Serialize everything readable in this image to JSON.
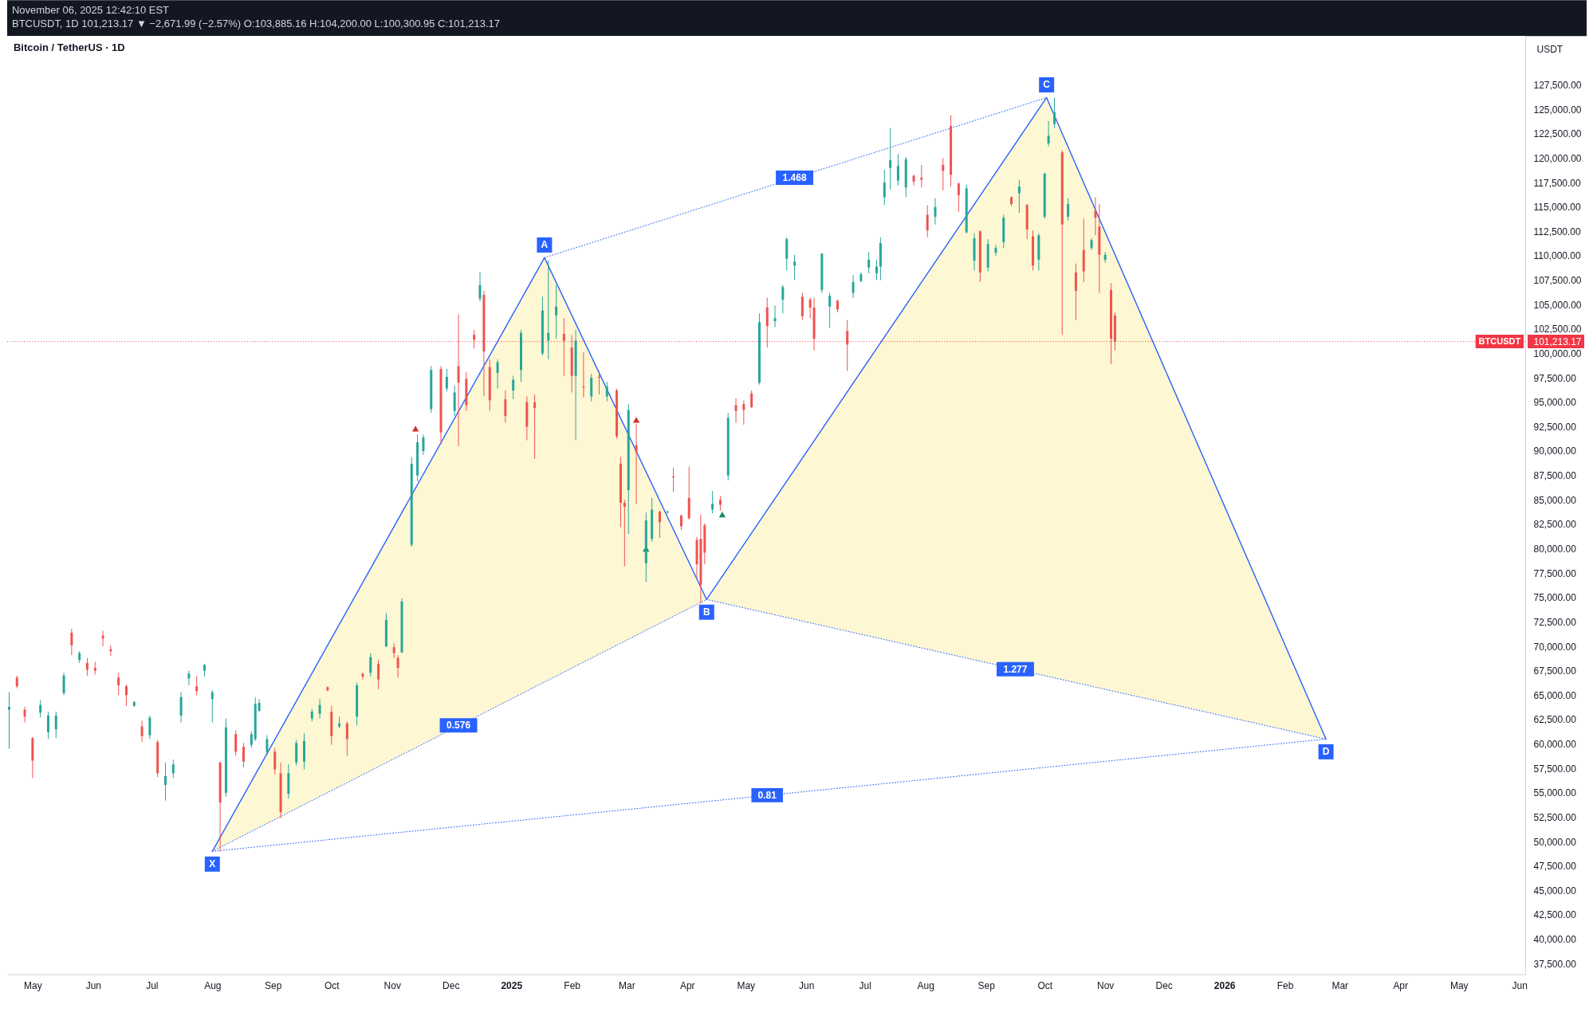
{
  "chart_data": {
    "type": "candlestick",
    "title": "Bitcoin / TetherUS · 1D",
    "ylabel": "USDT",
    "xlim": [
      "2024-04-18",
      "2026-06-04"
    ],
    "ylim": [
      36400,
      132500
    ],
    "xticks": [
      {
        "value": "2024-05-01",
        "label": "May"
      },
      {
        "value": "2024-06-01",
        "label": "Jun"
      },
      {
        "value": "2024-07-01",
        "label": "Jul"
      },
      {
        "value": "2024-08-01",
        "label": "Aug"
      },
      {
        "value": "2024-09-01",
        "label": "Sep"
      },
      {
        "value": "2024-10-01",
        "label": "Oct"
      },
      {
        "value": "2024-11-01",
        "label": "Nov"
      },
      {
        "value": "2024-12-01",
        "label": "Dec"
      },
      {
        "value": "2025-01-01",
        "label": "2025"
      },
      {
        "value": "2025-02-01",
        "label": "Feb"
      },
      {
        "value": "2025-03-01",
        "label": "Mar"
      },
      {
        "value": "2025-04-01",
        "label": "Apr"
      },
      {
        "value": "2025-05-01",
        "label": "May"
      },
      {
        "value": "2025-06-01",
        "label": "Jun"
      },
      {
        "value": "2025-07-01",
        "label": "Jul"
      },
      {
        "value": "2025-08-01",
        "label": "Aug"
      },
      {
        "value": "2025-09-01",
        "label": "Sep"
      },
      {
        "value": "2025-10-01",
        "label": "Oct"
      },
      {
        "value": "2025-11-01",
        "label": "Nov"
      },
      {
        "value": "2025-12-01",
        "label": "Dec"
      },
      {
        "value": "2026-01-01",
        "label": "2026"
      },
      {
        "value": "2026-02-01",
        "label": "Feb"
      },
      {
        "value": "2026-03-01",
        "label": "Mar"
      },
      {
        "value": "2026-04-01",
        "label": "Apr"
      },
      {
        "value": "2026-05-01",
        "label": "May"
      },
      {
        "value": "2026-06-01",
        "label": "Jun"
      }
    ],
    "yticks": [
      {
        "value": 37500,
        "label": "37,500.00"
      },
      {
        "value": 40000,
        "label": "40,000.00"
      },
      {
        "value": 42500,
        "label": "42,500.00"
      },
      {
        "value": 45000,
        "label": "45,000.00"
      },
      {
        "value": 47500,
        "label": "47,500.00"
      },
      {
        "value": 50000,
        "label": "50,000.00"
      },
      {
        "value": 52500,
        "label": "52,500.00"
      },
      {
        "value": 55000,
        "label": "55,000.00"
      },
      {
        "value": 57500,
        "label": "57,500.00"
      },
      {
        "value": 60000,
        "label": "60,000.00"
      },
      {
        "value": 62500,
        "label": "62,500.00"
      },
      {
        "value": 65000,
        "label": "65,000.00"
      },
      {
        "value": 67500,
        "label": "67,500.00"
      },
      {
        "value": 70000,
        "label": "70,000.00"
      },
      {
        "value": 72500,
        "label": "72,500.00"
      },
      {
        "value": 75000,
        "label": "75,000.00"
      },
      {
        "value": 77500,
        "label": "77,500.00"
      },
      {
        "value": 80000,
        "label": "80,000.00"
      },
      {
        "value": 82500,
        "label": "82,500.00"
      },
      {
        "value": 85000,
        "label": "85,000.00"
      },
      {
        "value": 87500,
        "label": "87,500.00"
      },
      {
        "value": 90000,
        "label": "90,000.00"
      },
      {
        "value": 92500,
        "label": "92,500.00"
      },
      {
        "value": 95000,
        "label": "95,000.00"
      },
      {
        "value": 97500,
        "label": "97,500.00"
      },
      {
        "value": 100000,
        "label": "100,000.00"
      },
      {
        "value": 101213.17,
        "label": "101,213.17"
      },
      {
        "value": 102500,
        "label": "102,500.00"
      },
      {
        "value": 105000,
        "label": "105,000.00"
      },
      {
        "value": 107500,
        "label": "107,500.00"
      },
      {
        "value": 110000,
        "label": "110,000.00"
      },
      {
        "value": 112500,
        "label": "112,500.00"
      },
      {
        "value": 115000,
        "label": "115,000.00"
      },
      {
        "value": 117500,
        "label": "117,500.00"
      },
      {
        "value": 120000,
        "label": "120,000.00"
      },
      {
        "value": 122500,
        "label": "122,500.00"
      },
      {
        "value": 125000,
        "label": "125,000.00"
      },
      {
        "value": 127500,
        "label": "127,500.00"
      }
    ],
    "series": [
      {
        "type": "line",
        "x": [
          "2024-08-01",
          "2025-01-18",
          "2025-04-11"
        ],
        "values": [
          49000,
          66340,
          74800
        ],
        "lower": [
          49000,
          66340,
          74800
        ],
        "upper": [
          49000,
          109800,
          74800
        ],
        "color": "#2962ff",
        "line_style": "dotted"
      },
      {
        "type": "line",
        "x": [
          "2025-01-18",
          "2025-10-02"
        ],
        "values": [
          109800,
          126200
        ],
        "color": "#2962ff",
        "line_style": "dotted"
      },
      {
        "type": "line",
        "x": [
          "2025-04-11",
          "2025-10-02",
          "2026-02-22"
        ],
        "values": [
          74800,
          66950,
          60500
        ],
        "lower": [
          74800,
          66950,
          60500
        ],
        "upper": [
          74800,
          126200,
          60500
        ],
        "color": "#2962ff",
        "line_style": "dotted"
      },
      {
        "type": "line",
        "x": [
          "2024-08-01",
          "2026-02-22"
        ],
        "values": [
          49000,
          60500
        ],
        "color": "#2962ff",
        "line_style": "dotted"
      },
      {
        "type": "line",
        "x": [
          "2024-08-01",
          "2025-01-18",
          "2025-04-11",
          "2025-10-02",
          "2026-02-22"
        ],
        "values": [
          49000,
          109800,
          74800,
          126200,
          60500
        ],
        "color": "#2962ff",
        "line_style": "solid"
      },
      {
        "type": "scatter",
        "x": [
          "2024-11-13",
          "2025-03-06"
        ],
        "values": [
          92300,
          93200
        ],
        "color": "#d32f2f",
        "marker": "triangle"
      },
      {
        "type": "scatter",
        "x": [
          "2025-03-11",
          "2025-04-19"
        ],
        "values": [
          80000,
          83500
        ],
        "color": "#178a6c",
        "marker": "triangle"
      },
      {
        "x": [
          "2024-04-19",
          "2024-04-23",
          "2024-04-27",
          "2024-05-01",
          "2024-05-05",
          "2024-05-09",
          "2024-05-13",
          "2024-05-17",
          "2024-05-21",
          "2024-05-25",
          "2024-05-29",
          "2024-06-02",
          "2024-06-06",
          "2024-06-10",
          "2024-06-14",
          "2024-06-18",
          "2024-06-22",
          "2024-06-26",
          "2024-06-30",
          "2024-07-04",
          "2024-07-08",
          "2024-07-12",
          "2024-07-16",
          "2024-07-20",
          "2024-07-24",
          "2024-07-28",
          "2024-08-01",
          "2024-08-05",
          "2024-08-08",
          "2024-08-13",
          "2024-08-17",
          "2024-08-21",
          "2024-08-23",
          "2024-08-25",
          "2024-08-29",
          "2024-09-02",
          "2024-09-05",
          "2024-09-09",
          "2024-09-13",
          "2024-09-17",
          "2024-09-21",
          "2024-09-25",
          "2024-09-29",
          "2024-10-01",
          "2024-10-05",
          "2024-10-09",
          "2024-10-14",
          "2024-10-17",
          "2024-10-21",
          "2024-10-25",
          "2024-10-29",
          "2024-11-02",
          "2024-11-04",
          "2024-11-06",
          "2024-11-11",
          "2024-11-14",
          "2024-11-17",
          "2024-11-21",
          "2024-11-26",
          "2024-11-29",
          "2024-12-03",
          "2024-12-05",
          "2024-12-09",
          "2024-12-13",
          "2024-12-16",
          "2024-12-18",
          "2024-12-21",
          "2024-12-25",
          "2024-12-29",
          "2025-01-02",
          "2025-01-06",
          "2025-01-09",
          "2025-01-13",
          "2025-01-17",
          "2025-01-20",
          "2025-01-24",
          "2025-01-28",
          "2025-02-01",
          "2025-02-03",
          "2025-02-07",
          "2025-02-11",
          "2025-02-15",
          "2025-02-19",
          "2025-02-24",
          "2025-02-26",
          "2025-02-28",
          "2025-03-02",
          "2025-03-06",
          "2025-03-11",
          "2025-03-14",
          "2025-03-18",
          "2025-03-22",
          "2025-03-25",
          "2025-03-29",
          "2025-04-02",
          "2025-04-06",
          "2025-04-08",
          "2025-04-10",
          "2025-04-14",
          "2025-04-18",
          "2025-04-22",
          "2025-04-26",
          "2025-04-30",
          "2025-05-04",
          "2025-05-08",
          "2025-05-12",
          "2025-05-16",
          "2025-05-20",
          "2025-05-22",
          "2025-05-26",
          "2025-05-30",
          "2025-06-03",
          "2025-06-05",
          "2025-06-09",
          "2025-06-13",
          "2025-06-17",
          "2025-06-22",
          "2025-06-25",
          "2025-06-29",
          "2025-07-03",
          "2025-07-07",
          "2025-07-09",
          "2025-07-11",
          "2025-07-14",
          "2025-07-18",
          "2025-07-22",
          "2025-07-26",
          "2025-07-30",
          "2025-08-02",
          "2025-08-06",
          "2025-08-10",
          "2025-08-14",
          "2025-08-18",
          "2025-08-22",
          "2025-08-26",
          "2025-08-29",
          "2025-09-02",
          "2025-09-06",
          "2025-09-10",
          "2025-09-14",
          "2025-09-18",
          "2025-09-22",
          "2025-09-25",
          "2025-09-28",
          "2025-10-01",
          "2025-10-03",
          "2025-10-06",
          "2025-10-10",
          "2025-10-13",
          "2025-10-17",
          "2025-10-21",
          "2025-10-25",
          "2025-10-27",
          "2025-10-29",
          "2025-11-01",
          "2025-11-04",
          "2025-11-06"
        ],
        "ohlc": [
          [
            63500,
            65300,
            59500,
            63800
          ],
          [
            66800,
            67000,
            65700,
            65900
          ],
          [
            63500,
            63800,
            62200,
            62800
          ],
          [
            60600,
            60700,
            56500,
            58300
          ],
          [
            63200,
            64500,
            62700,
            64000
          ],
          [
            61200,
            63300,
            60500,
            62900
          ],
          [
            61500,
            63300,
            60600,
            62900
          ],
          [
            65200,
            67300,
            65000,
            67000
          ],
          [
            71400,
            71800,
            69100,
            70100
          ],
          [
            68600,
            69500,
            68300,
            69300
          ],
          [
            68300,
            68800,
            67000,
            67600
          ],
          [
            67800,
            68400,
            67100,
            67500
          ],
          [
            71100,
            71600,
            70000,
            70800
          ],
          [
            69700,
            70100,
            69000,
            69500
          ],
          [
            66800,
            67300,
            65000,
            66000
          ],
          [
            65900,
            66100,
            63900,
            65000
          ],
          [
            63900,
            64400,
            63800,
            64300
          ],
          [
            61800,
            62400,
            60200,
            60800
          ],
          [
            60900,
            62900,
            60500,
            62700
          ],
          [
            60200,
            60400,
            56600,
            57000
          ],
          [
            55800,
            58100,
            54200,
            56700
          ],
          [
            57000,
            58400,
            56500,
            57900
          ],
          [
            62900,
            65300,
            62200,
            64800
          ],
          [
            66700,
            67500,
            66000,
            67200
          ],
          [
            65900,
            67000,
            65000,
            65400
          ],
          [
            67500,
            68200,
            66900,
            68100
          ],
          [
            64600,
            65500,
            62200,
            65300
          ],
          [
            58100,
            58200,
            49000,
            54000
          ],
          [
            55000,
            62600,
            54600,
            61700
          ],
          [
            61000,
            61400,
            58800,
            59200
          ],
          [
            59700,
            60100,
            57600,
            58200
          ],
          [
            59900,
            61300,
            59600,
            61000
          ],
          [
            60500,
            64800,
            60300,
            64100
          ],
          [
            63400,
            64600,
            63300,
            64200
          ],
          [
            59200,
            60900,
            58900,
            60500
          ],
          [
            59200,
            59600,
            56900,
            57400
          ],
          [
            57000,
            58100,
            52400,
            53000
          ],
          [
            54900,
            57900,
            54400,
            57000
          ],
          [
            58100,
            60400,
            57800,
            60100
          ],
          [
            58200,
            61100,
            57400,
            60300
          ],
          [
            62600,
            63600,
            62300,
            63300
          ],
          [
            63100,
            64600,
            62600,
            64000
          ],
          [
            65800,
            65900,
            65400,
            65500
          ],
          [
            63300,
            63900,
            59900,
            60800
          ],
          [
            61800,
            62800,
            61600,
            62100
          ],
          [
            62100,
            62300,
            58800,
            60500
          ],
          [
            62800,
            66300,
            61900,
            66000
          ],
          [
            67200,
            67300,
            66600,
            66900
          ],
          [
            67300,
            69300,
            66900,
            68900
          ],
          [
            68200,
            68600,
            65600,
            66600
          ],
          [
            70000,
            73400,
            69900,
            72700
          ],
          [
            69900,
            70300,
            68800,
            69300
          ],
          [
            68800,
            69100,
            66800,
            67800
          ],
          [
            69400,
            74900,
            69300,
            74600
          ],
          [
            80400,
            89400,
            80200,
            88700
          ],
          [
            87500,
            91700,
            86900,
            90900
          ],
          [
            90000,
            91700,
            89600,
            91400
          ],
          [
            94300,
            98700,
            93900,
            98300
          ],
          [
            98400,
            98700,
            90700,
            91900
          ],
          [
            96400,
            98400,
            96100,
            97600
          ],
          [
            94100,
            96700,
            93600,
            96000
          ],
          [
            98700,
            104000,
            90500,
            97000
          ],
          [
            97400,
            98100,
            94100,
            94700
          ],
          [
            101900,
            102400,
            100500,
            101400
          ],
          [
            105600,
            108300,
            105300,
            107000
          ],
          [
            106000,
            106400,
            95600,
            100200
          ],
          [
            98600,
            99400,
            94100,
            95200
          ],
          [
            98000,
            99400,
            96400,
            99100
          ],
          [
            95300,
            96200,
            92900,
            93600
          ],
          [
            96200,
            97700,
            95300,
            97300
          ],
          [
            98300,
            102400,
            97100,
            102100
          ],
          [
            95000,
            95600,
            91100,
            92500
          ],
          [
            95000,
            95800,
            89200,
            94400
          ],
          [
            100000,
            105800,
            99800,
            104400
          ],
          [
            101300,
            109500,
            99400,
            102100
          ],
          [
            103900,
            107000,
            101500,
            104800
          ],
          [
            102000,
            103600,
            97700,
            101300
          ],
          [
            100600,
            101900,
            96000,
            97700
          ],
          [
            97700,
            102400,
            91100,
            101300
          ],
          [
            96600,
            100100,
            95500,
            96500
          ],
          [
            95600,
            97900,
            95100,
            97500
          ],
          [
            97600,
            98200,
            95800,
            97500
          ],
          [
            95600,
            97100,
            95100,
            96600
          ],
          [
            96200,
            96400,
            91300,
            91500
          ],
          [
            88700,
            89400,
            82200,
            84700
          ],
          [
            84700,
            85000,
            78200,
            84300
          ],
          [
            86000,
            94800,
            81500,
            94200
          ],
          [
            90600,
            92800,
            84600,
            89900
          ],
          [
            78500,
            83700,
            76600,
            82900
          ],
          [
            81000,
            85200,
            80700,
            84000
          ],
          [
            83800,
            83900,
            81100,
            82700
          ],
          [
            83700,
            83900,
            83600,
            83800
          ],
          [
            87400,
            88300,
            85800,
            87300
          ],
          [
            83400,
            83500,
            81900,
            82300
          ],
          [
            85200,
            88400,
            83000,
            83100
          ],
          [
            80900,
            81200,
            77000,
            78400
          ],
          [
            81000,
            83500,
            74400,
            76300
          ],
          [
            82400,
            82600,
            78400,
            79600
          ],
          [
            84000,
            85900,
            83600,
            84600
          ],
          [
            85000,
            85400,
            83900,
            84500
          ],
          [
            87500,
            93900,
            87000,
            93400
          ],
          [
            94700,
            95400,
            92900,
            94100
          ],
          [
            94800,
            95200,
            92700,
            94200
          ],
          [
            95900,
            96200,
            94400,
            94500
          ],
          [
            97000,
            104100,
            96800,
            103200
          ],
          [
            104700,
            105700,
            100600,
            102800
          ],
          [
            103300,
            104900,
            102700,
            103600
          ],
          [
            105500,
            107000,
            104100,
            106800
          ],
          [
            109700,
            111900,
            108500,
            111700
          ],
          [
            109000,
            110100,
            107500,
            109400
          ],
          [
            105800,
            106200,
            103400,
            103800
          ],
          [
            105500,
            105700,
            103600,
            104700
          ],
          [
            104700,
            105700,
            100300,
            101500
          ],
          [
            106500,
            110300,
            106200,
            110200
          ],
          [
            104800,
            106200,
            102600,
            105900
          ],
          [
            105400,
            105500,
            104200,
            104500
          ],
          [
            102300,
            103400,
            98200,
            100900
          ],
          [
            106200,
            108000,
            105700,
            107300
          ],
          [
            107400,
            108300,
            107300,
            108100
          ],
          [
            108800,
            110400,
            108200,
            109600
          ],
          [
            108200,
            109600,
            107500,
            108900
          ],
          [
            108900,
            111900,
            107500,
            111300
          ],
          [
            116000,
            118800,
            115200,
            117500
          ],
          [
            119000,
            123100,
            116800,
            119800
          ],
          [
            117700,
            120400,
            117200,
            119200
          ],
          [
            117000,
            120100,
            116000,
            119900
          ],
          [
            118200,
            118300,
            117200,
            117600
          ],
          [
            118000,
            119300,
            117000,
            117800
          ],
          [
            114200,
            115200,
            111900,
            112600
          ],
          [
            114000,
            115900,
            113200,
            115000
          ],
          [
            119300,
            120000,
            116700,
            118700
          ],
          [
            123300,
            124400,
            117100,
            118300
          ],
          [
            117400,
            117500,
            114500,
            116200
          ],
          [
            112400,
            117300,
            112300,
            116900
          ],
          [
            109500,
            112300,
            108500,
            111800
          ],
          [
            112500,
            112600,
            107300,
            108300
          ],
          [
            108800,
            111700,
            108400,
            111200
          ],
          [
            110300,
            111100,
            110000,
            110800
          ],
          [
            111400,
            114200,
            110800,
            113900
          ],
          [
            116000,
            116100,
            115100,
            115300
          ],
          [
            116400,
            117800,
            114400,
            117100
          ],
          [
            115200,
            115300,
            111700,
            112700
          ],
          [
            112000,
            112600,
            108500,
            109000
          ],
          [
            109600,
            112300,
            108500,
            112100
          ],
          [
            114000,
            118500,
            113800,
            118400
          ],
          [
            121500,
            123800,
            121200,
            122300
          ],
          [
            123500,
            126200,
            123100,
            124700
          ],
          [
            120600,
            120800,
            101900,
            113200
          ],
          [
            114000,
            115900,
            113600,
            115300
          ],
          [
            108300,
            109200,
            103400,
            106400
          ],
          [
            110600,
            113800,
            107300,
            108400
          ],
          [
            110800,
            111800,
            110600,
            111600
          ],
          [
            114600,
            116000,
            112100,
            113900
          ],
          [
            113000,
            115300,
            106200,
            110100
          ],
          [
            109600,
            110400,
            109300,
            110100
          ],
          [
            106500,
            107200,
            98900,
            101500
          ],
          [
            103885.16,
            104200,
            100300.95,
            101213.17
          ]
        ],
        "colors": [
          "#26a69a",
          "#ef5350",
          "#ef5350",
          "#ef5350",
          "#26a69a",
          "#26a69a",
          "#26a69a",
          "#26a69a",
          "#ef5350",
          "#26a69a",
          "#ef5350",
          "#ef5350",
          "#ef5350",
          "#ef5350",
          "#ef5350",
          "#ef5350",
          "#26a69a",
          "#ef5350",
          "#26a69a",
          "#ef5350",
          "#26a69a",
          "#26a69a",
          "#26a69a",
          "#26a69a",
          "#ef5350",
          "#26a69a",
          "#26a69a",
          "#ef5350",
          "#26a69a",
          "#ef5350",
          "#ef5350",
          "#26a69a",
          "#26a69a",
          "#26a69a",
          "#26a69a",
          "#ef5350",
          "#ef5350",
          "#26a69a",
          "#26a69a",
          "#26a69a",
          "#26a69a",
          "#26a69a",
          "#ef5350",
          "#ef5350",
          "#26a69a",
          "#ef5350",
          "#26a69a",
          "#ef5350",
          "#26a69a",
          "#ef5350",
          "#26a69a",
          "#ef5350",
          "#ef5350",
          "#26a69a",
          "#26a69a",
          "#26a69a",
          "#26a69a",
          "#26a69a",
          "#ef5350",
          "#26a69a",
          "#26a69a",
          "#ef5350",
          "#ef5350",
          "#ef5350",
          "#26a69a",
          "#ef5350",
          "#ef5350",
          "#26a69a",
          "#ef5350",
          "#26a69a",
          "#26a69a",
          "#ef5350",
          "#ef5350",
          "#26a69a",
          "#26a69a",
          "#26a69a",
          "#ef5350",
          "#ef5350",
          "#26a69a",
          "#ef5350",
          "#26a69a",
          "#ef5350",
          "#26a69a",
          "#ef5350",
          "#ef5350",
          "#ef5350",
          "#26a69a",
          "#ef5350",
          "#26a69a",
          "#26a69a",
          "#ef5350",
          "#26a69a",
          "#ef5350",
          "#ef5350",
          "#ef5350",
          "#ef5350",
          "#ef5350",
          "#ef5350",
          "#26a69a",
          "#ef5350",
          "#26a69a",
          "#ef5350",
          "#ef5350",
          "#ef5350",
          "#26a69a",
          "#ef5350",
          "#26a69a",
          "#26a69a",
          "#26a69a",
          "#26a69a",
          "#ef5350",
          "#ef5350",
          "#ef5350",
          "#26a69a",
          "#26a69a",
          "#ef5350",
          "#ef5350",
          "#26a69a",
          "#26a69a",
          "#26a69a",
          "#26a69a",
          "#26a69a",
          "#26a69a",
          "#26a69a",
          "#26a69a",
          "#26a69a",
          "#ef5350",
          "#ef5350",
          "#ef5350",
          "#26a69a",
          "#ef5350",
          "#ef5350",
          "#ef5350",
          "#26a69a",
          "#26a69a",
          "#ef5350",
          "#26a69a",
          "#26a69a",
          "#26a69a",
          "#ef5350",
          "#26a69a",
          "#ef5350",
          "#ef5350",
          "#26a69a",
          "#26a69a",
          "#26a69a",
          "#26a69a",
          "#ef5350",
          "#26a69a",
          "#ef5350",
          "#ef5350",
          "#26a69a",
          "#ef5350",
          "#ef5350",
          "#26a69a",
          "#ef5350",
          "#ef5350"
        ]
      }
    ],
    "ref_lines": [
      {
        "axis": "y",
        "value": 101213.17,
        "label": "BTCUSDT",
        "color": "#f23645",
        "line_style": "dotted"
      }
    ],
    "annotations": [
      "November 06, 2025 12:42:10 EST",
      "BTCUSDT, 1D 101,213.17 ▼ −2,671.99 (−2.57%) O:103,885.16 H:104,200.00 L:100,300.95 C:101,213.17",
      {
        "text": "X",
        "x": "2024-08-01",
        "y": 49000
      },
      {
        "text": "A",
        "x": "2025-01-18",
        "y": 109800
      },
      {
        "text": "B",
        "x": "2025-04-11",
        "y": 74800
      },
      {
        "text": "C",
        "x": "2025-10-02",
        "y": 126200
      },
      {
        "text": "D",
        "x": "2026-02-22",
        "y": 60500
      },
      {
        "text": "1.468",
        "x": "2025-05-26",
        "y": 118000
      },
      {
        "text": "0.576",
        "x": "2024-12-05",
        "y": 61900
      },
      {
        "text": "1.277",
        "x": "2025-09-16",
        "y": 67650
      },
      {
        "text": "0.81",
        "x": "2025-05-12",
        "y": 54750
      }
    ]
  }
}
